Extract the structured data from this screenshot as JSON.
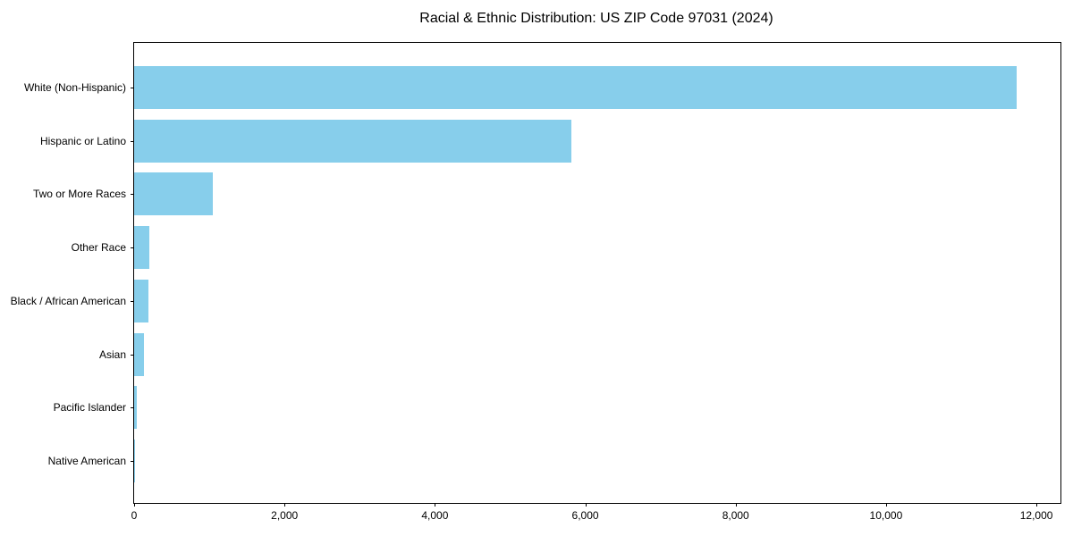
{
  "chart_data": {
    "type": "bar",
    "orientation": "horizontal",
    "title": "Racial & Ethnic Distribution: US ZIP Code 97031 (2024)",
    "categories": [
      "White (Non-Hispanic)",
      "Hispanic or Latino",
      "Two or More Races",
      "Other Race",
      "Black / African American",
      "Asian",
      "Pacific Islander",
      "Native American"
    ],
    "values": [
      11740,
      5815,
      1050,
      205,
      185,
      135,
      35,
      5
    ],
    "xlabel": "",
    "ylabel": "",
    "xlim": [
      0,
      12320
    ],
    "x_ticks": [
      0,
      2000,
      4000,
      6000,
      8000,
      10000,
      12000
    ],
    "x_tick_labels": [
      "0",
      "2,000",
      "4,000",
      "6,000",
      "8,000",
      "10,000",
      "12,000"
    ],
    "bar_color": "#87CEEB",
    "axis_color": "#000000",
    "background_color": "#ffffff",
    "grid": false,
    "legend": "none",
    "sort_order": "descending"
  }
}
